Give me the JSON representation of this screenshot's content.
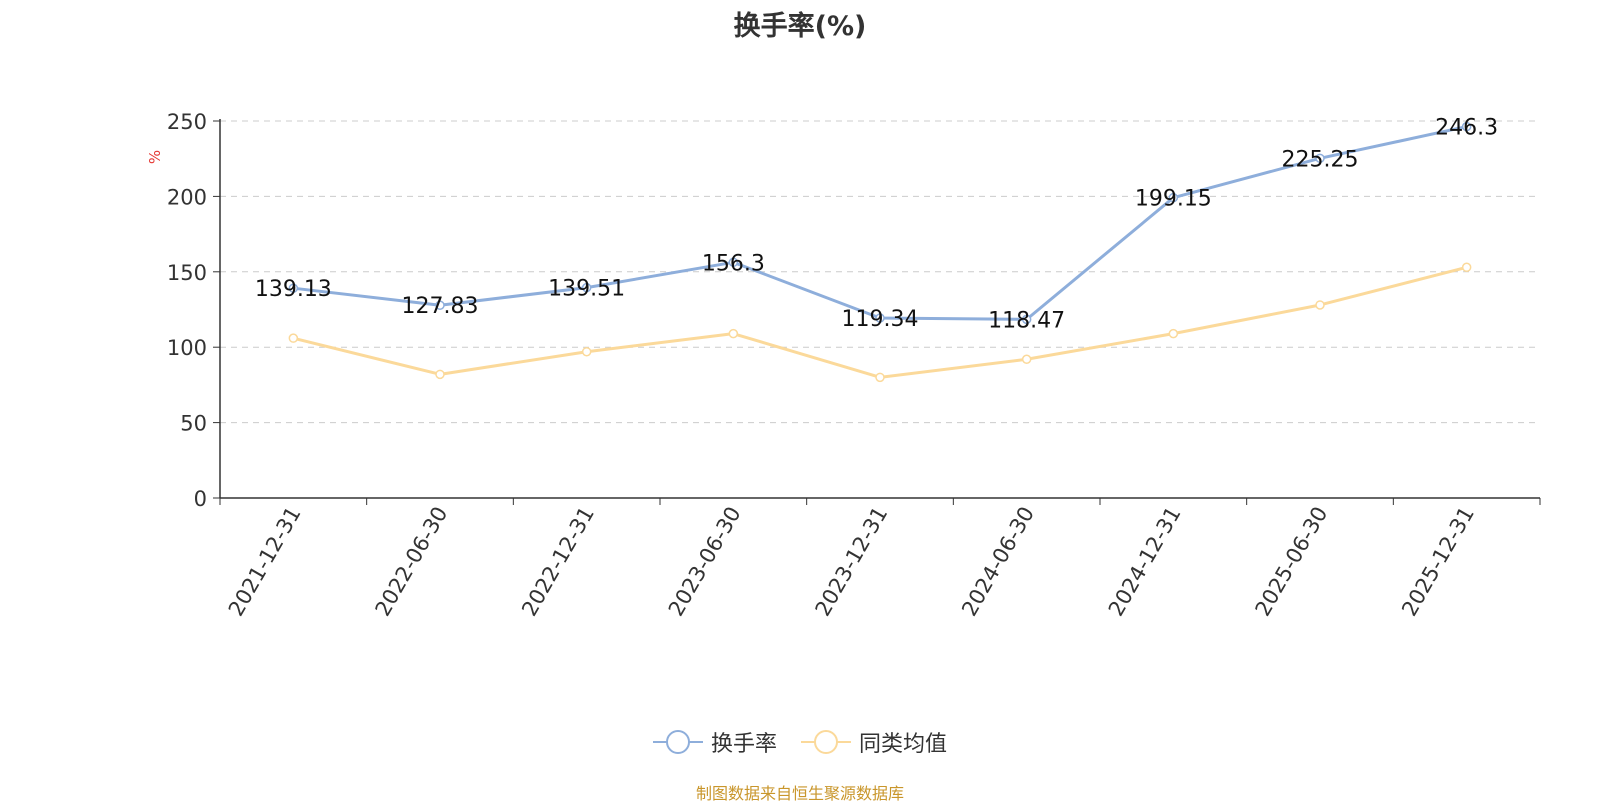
{
  "chart_data": {
    "type": "line",
    "title": "换手率(%)",
    "ylabel": "%",
    "xlabel": "",
    "ylim": [
      0,
      250
    ],
    "yticks": [
      0,
      50,
      100,
      150,
      200,
      250
    ],
    "categories": [
      "2021-12-31",
      "2022-06-30",
      "2022-12-31",
      "2023-06-30",
      "2023-12-31",
      "2024-06-30",
      "2024-12-31",
      "2025-06-30",
      "2025-12-31"
    ],
    "series": [
      {
        "name": "换手率",
        "color": "#8eaedb",
        "values": [
          139.13,
          127.83,
          139.51,
          156.3,
          119.34,
          118.47,
          199.15,
          225.25,
          246.3
        ],
        "labels": [
          "139.13",
          "127.83",
          "139.51",
          "156.3",
          "119.34",
          "118.47",
          "199.15",
          "225.25",
          "246.3"
        ],
        "show_labels": true
      },
      {
        "name": "同类均值",
        "color": "#fbd99a",
        "values": [
          106,
          82,
          97,
          109,
          80,
          92,
          109,
          128,
          153
        ],
        "show_labels": false
      }
    ],
    "grid": true,
    "legend_position": "bottom-center"
  },
  "source_note": "制图数据来自恒生聚源数据库"
}
